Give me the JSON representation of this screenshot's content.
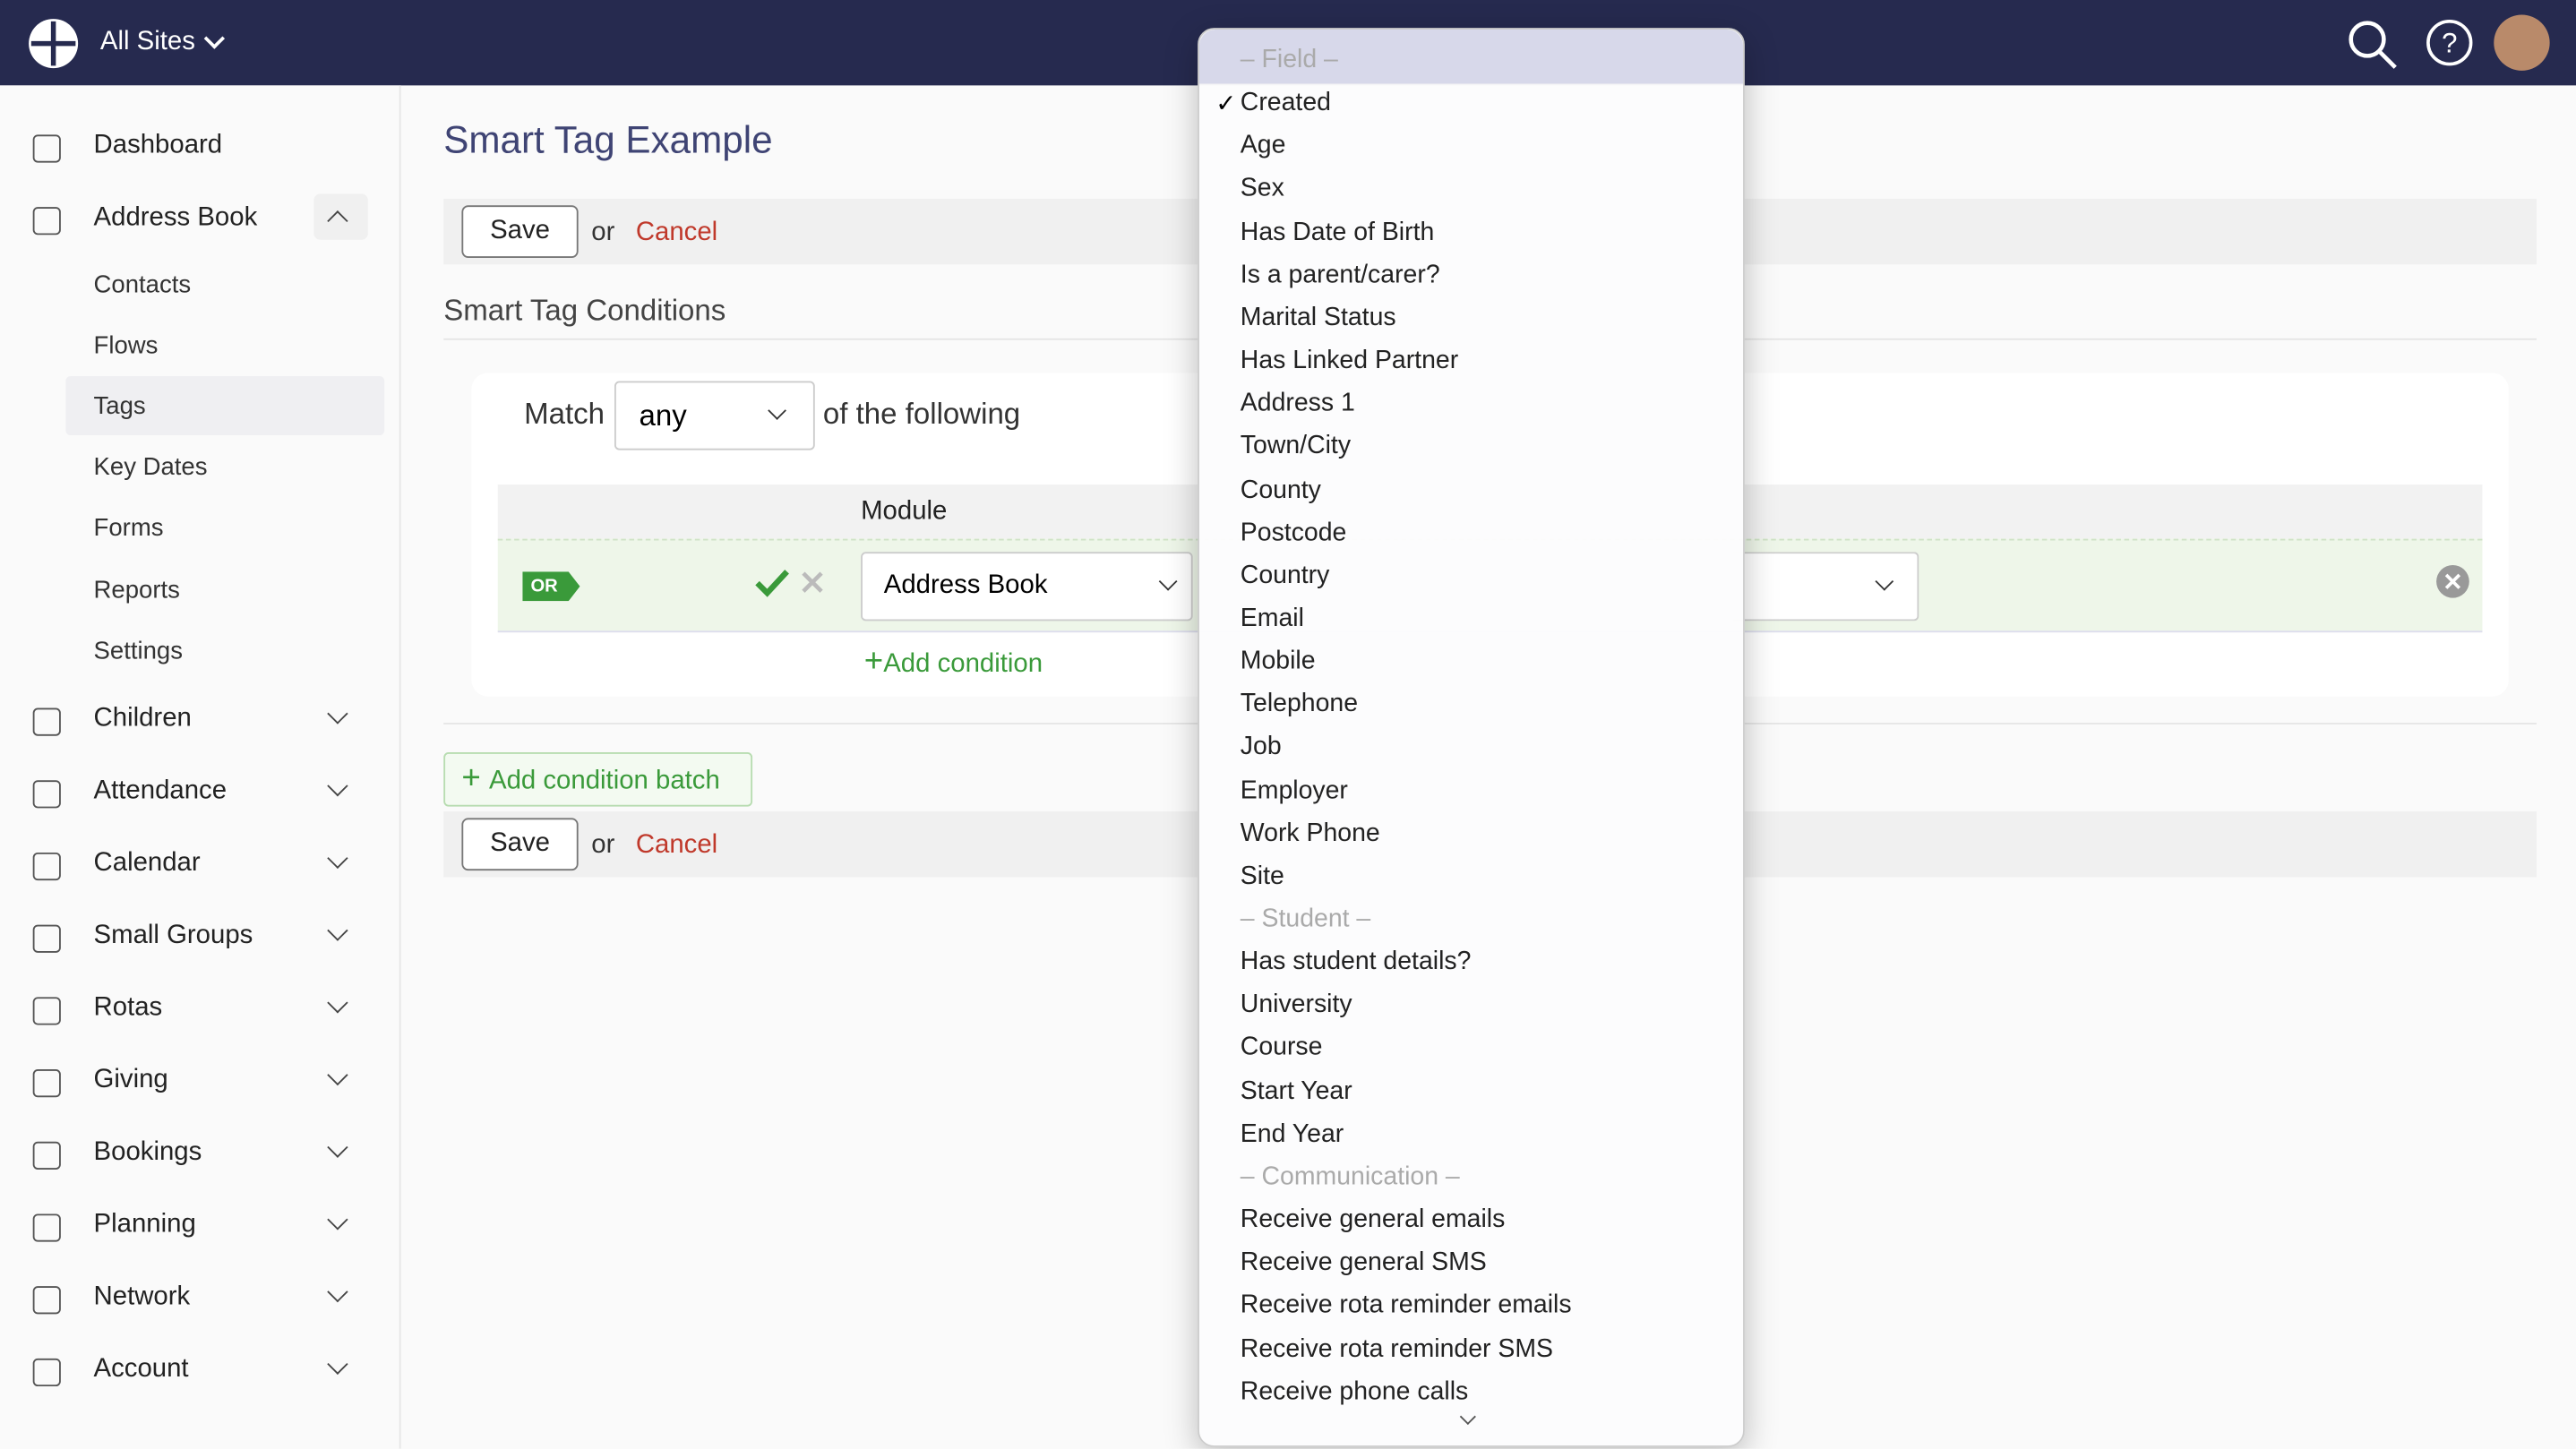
{
  "topbar": {
    "site": "All Sites"
  },
  "sidebar": {
    "items": [
      {
        "label": "Dashboard"
      },
      {
        "label": "Address Book",
        "children": [
          "Contacts",
          "Flows",
          "Tags",
          "Key Dates",
          "Forms",
          "Reports",
          "Settings"
        ]
      },
      {
        "label": "Children"
      },
      {
        "label": "Attendance"
      },
      {
        "label": "Calendar"
      },
      {
        "label": "Small Groups"
      },
      {
        "label": "Rotas"
      },
      {
        "label": "Giving"
      },
      {
        "label": "Bookings"
      },
      {
        "label": "Planning"
      },
      {
        "label": "Network"
      },
      {
        "label": "Account"
      }
    ]
  },
  "main": {
    "title": "Smart Tag Example",
    "save": "Save",
    "or": "or",
    "cancel": "Cancel",
    "section": "Smart Tag Conditions",
    "match_label": "Match",
    "match_value": "any",
    "match_suffix": "of the following",
    "column": "Module",
    "badge": "OR",
    "module": "Address Book",
    "add_condition": "Add condition",
    "add_batch": "Add condition batch"
  },
  "dropdown": {
    "options": [
      {
        "label": "– Field –",
        "group": true
      },
      {
        "label": "Created",
        "checked": true
      },
      {
        "label": "Age"
      },
      {
        "label": "Sex"
      },
      {
        "label": "Has Date of Birth"
      },
      {
        "label": "Is a parent/carer?"
      },
      {
        "label": "Marital Status"
      },
      {
        "label": "Has Linked Partner"
      },
      {
        "label": "Address 1"
      },
      {
        "label": "Town/City"
      },
      {
        "label": "County"
      },
      {
        "label": "Postcode"
      },
      {
        "label": "Country"
      },
      {
        "label": "Email"
      },
      {
        "label": "Mobile"
      },
      {
        "label": "Telephone"
      },
      {
        "label": "Job"
      },
      {
        "label": "Employer"
      },
      {
        "label": "Work Phone"
      },
      {
        "label": "Site"
      },
      {
        "label": "– Student –",
        "group": true
      },
      {
        "label": "Has student details?"
      },
      {
        "label": "University"
      },
      {
        "label": "Course"
      },
      {
        "label": "Start Year"
      },
      {
        "label": "End Year"
      },
      {
        "label": "– Communication –",
        "group": true
      },
      {
        "label": "Receive general emails"
      },
      {
        "label": "Receive general SMS"
      },
      {
        "label": "Receive rota reminder emails"
      },
      {
        "label": "Receive rota reminder SMS"
      },
      {
        "label": "Receive phone calls"
      }
    ]
  }
}
